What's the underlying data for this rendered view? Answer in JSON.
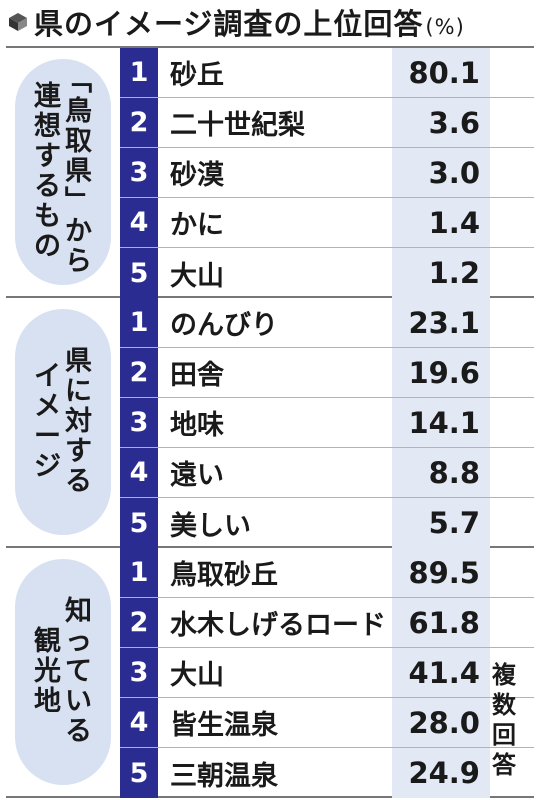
{
  "title": "県のイメージ調査の上位回答",
  "unit": "(%)",
  "note": "複数回答",
  "chart_data": {
    "type": "table",
    "groups": [
      {
        "label_cols": [
          "「鳥取県」から",
          "連想するもの"
        ],
        "rows": [
          {
            "rank": "1",
            "name": "砂丘",
            "value": "80.1"
          },
          {
            "rank": "2",
            "name": "二十世紀梨",
            "value": "3.6"
          },
          {
            "rank": "3",
            "name": "砂漠",
            "value": "3.0"
          },
          {
            "rank": "4",
            "name": "かに",
            "value": "1.4"
          },
          {
            "rank": "5",
            "name": "大山",
            "value": "1.2"
          }
        ]
      },
      {
        "label_cols": [
          "県に対する",
          "イメージ"
        ],
        "rows": [
          {
            "rank": "1",
            "name": "のんびり",
            "value": "23.1"
          },
          {
            "rank": "2",
            "name": "田舎",
            "value": "19.6"
          },
          {
            "rank": "3",
            "name": "地味",
            "value": "14.1"
          },
          {
            "rank": "4",
            "name": "遠い",
            "value": "8.8"
          },
          {
            "rank": "5",
            "name": "美しい",
            "value": "5.7"
          }
        ]
      },
      {
        "label_cols": [
          "知っている",
          "観光地"
        ],
        "rows": [
          {
            "rank": "1",
            "name": "鳥取砂丘",
            "value": "89.5"
          },
          {
            "rank": "2",
            "name": "水木しげるロード",
            "value": "61.8"
          },
          {
            "rank": "3",
            "name": "大山",
            "value": "41.4"
          },
          {
            "rank": "4",
            "name": "皆生温泉",
            "value": "28.0"
          },
          {
            "rank": "5",
            "name": "三朝温泉",
            "value": "24.9"
          }
        ]
      }
    ]
  }
}
